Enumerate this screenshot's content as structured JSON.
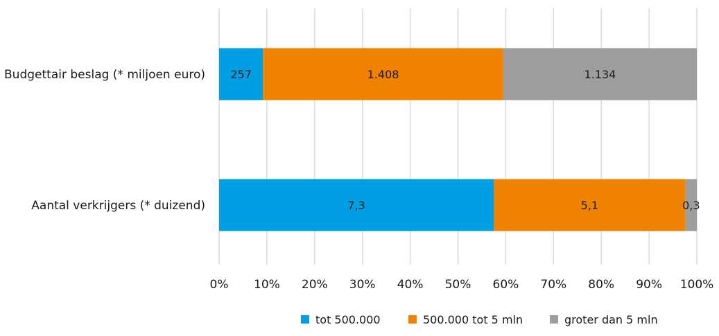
{
  "chart_data": {
    "type": "bar",
    "orientation": "horizontal",
    "stacked": "percent",
    "categories": [
      "Budgettair beslag (* miljoen euro)",
      "Aantal verkrijgers (* duizend)"
    ],
    "series": [
      {
        "name": "tot 500.000",
        "color": "#009fe3",
        "values": [
          257,
          7.3
        ],
        "labels": [
          "257",
          "7,3"
        ]
      },
      {
        "name": "500.000 tot 5 mln",
        "color": "#ef8200",
        "values": [
          1408,
          5.1
        ],
        "labels": [
          "1.408",
          "5,1"
        ]
      },
      {
        "name": "groter dan 5 mln",
        "color": "#9d9d9c",
        "values": [
          1134,
          0.3
        ],
        "labels": [
          "1.134",
          "0,3"
        ]
      }
    ],
    "xticks": [
      "0%",
      "10%",
      "20%",
      "30%",
      "40%",
      "50%",
      "60%",
      "70%",
      "80%",
      "90%",
      "100%"
    ],
    "xlim": [
      0,
      100
    ],
    "grid": true,
    "legend": "bottom",
    "title": "",
    "xlabel": "",
    "ylabel": ""
  }
}
